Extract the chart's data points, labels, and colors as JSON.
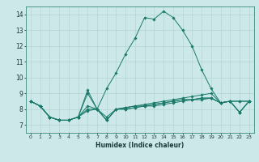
{
  "background_color": "#cce8e8",
  "grid_color": "#b8d8d8",
  "line_color": "#1a7a6a",
  "xlabel": "Humidex (Indice chaleur)",
  "xlim": [
    -0.5,
    23.5
  ],
  "ylim": [
    6.5,
    14.5
  ],
  "yticks": [
    7,
    8,
    9,
    10,
    11,
    12,
    13,
    14
  ],
  "xticks": [
    0,
    1,
    2,
    3,
    4,
    5,
    6,
    7,
    8,
    9,
    10,
    11,
    12,
    13,
    14,
    15,
    16,
    17,
    18,
    19,
    20,
    21,
    22,
    23
  ],
  "series": [
    {
      "x": [
        0,
        1,
        2,
        3,
        4,
        5,
        6,
        7,
        8,
        9,
        10,
        11,
        12,
        13,
        14,
        15,
        16,
        17,
        18,
        19,
        20,
        21,
        22,
        23
      ],
      "y": [
        8.5,
        8.2,
        7.5,
        7.3,
        7.3,
        7.5,
        9.2,
        8.0,
        7.3,
        8.0,
        8.1,
        8.2,
        8.3,
        8.4,
        8.5,
        8.6,
        8.7,
        8.8,
        8.9,
        9.0,
        8.4,
        8.5,
        8.5,
        8.5
      ]
    },
    {
      "x": [
        0,
        1,
        2,
        3,
        4,
        5,
        6,
        7,
        8,
        9,
        10,
        11,
        12,
        13,
        14,
        15,
        16,
        17,
        18,
        19,
        20,
        21,
        22,
        23
      ],
      "y": [
        8.5,
        8.2,
        7.5,
        7.3,
        7.3,
        7.5,
        8.2,
        8.0,
        7.5,
        8.0,
        8.1,
        8.2,
        8.2,
        8.3,
        8.4,
        8.5,
        8.6,
        8.6,
        8.7,
        8.7,
        8.4,
        8.5,
        7.8,
        8.5
      ]
    },
    {
      "x": [
        0,
        1,
        2,
        3,
        4,
        5,
        6,
        7,
        8,
        9,
        10,
        11,
        12,
        13,
        14,
        15,
        16,
        17,
        18,
        19,
        20,
        21,
        22,
        23
      ],
      "y": [
        8.5,
        8.2,
        7.5,
        7.3,
        7.3,
        7.5,
        8.0,
        8.0,
        7.3,
        8.0,
        8.0,
        8.1,
        8.2,
        8.3,
        8.4,
        8.5,
        8.6,
        8.6,
        8.7,
        8.7,
        8.4,
        8.5,
        7.8,
        8.5
      ]
    },
    {
      "x": [
        0,
        1,
        2,
        3,
        4,
        5,
        6,
        7,
        8,
        9,
        10,
        11,
        12,
        13,
        14,
        15,
        16,
        17,
        18,
        19,
        20,
        21,
        22,
        23
      ],
      "y": [
        8.5,
        8.2,
        7.5,
        7.3,
        7.3,
        7.5,
        7.9,
        8.0,
        7.3,
        8.0,
        8.0,
        8.1,
        8.2,
        8.2,
        8.3,
        8.4,
        8.5,
        8.6,
        8.6,
        8.7,
        8.4,
        8.5,
        7.8,
        8.5
      ]
    },
    {
      "x": [
        0,
        1,
        2,
        3,
        4,
        5,
        6,
        7,
        8,
        9,
        10,
        11,
        12,
        13,
        14,
        15,
        16,
        17,
        18,
        19,
        20,
        21,
        22,
        23
      ],
      "y": [
        8.5,
        8.2,
        7.5,
        7.3,
        7.3,
        7.5,
        9.0,
        8.0,
        9.3,
        10.3,
        11.5,
        12.5,
        13.8,
        13.7,
        14.2,
        13.8,
        13.0,
        12.0,
        10.5,
        9.3,
        8.4,
        8.5,
        8.5,
        8.5
      ]
    }
  ]
}
